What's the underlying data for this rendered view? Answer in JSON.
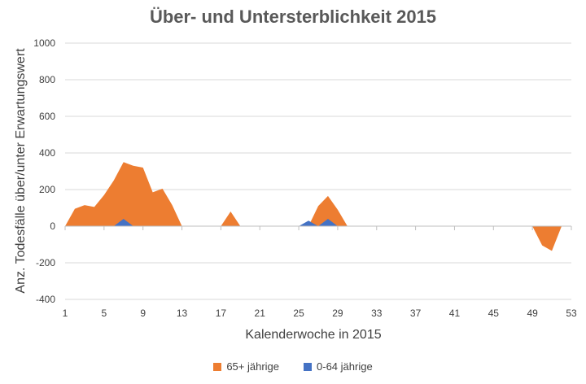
{
  "chart_data": {
    "type": "area",
    "title": "Über- und Untersterblichkeit 2015",
    "xlabel": "Kalenderwoche in 2015",
    "ylabel": "Anz. Todesfälle über/unter Erwartungswert",
    "xlim": [
      1,
      53
    ],
    "ylim": [
      -400,
      1000
    ],
    "x_ticks": [
      1,
      5,
      9,
      13,
      17,
      21,
      25,
      29,
      33,
      37,
      41,
      45,
      49,
      53
    ],
    "y_ticks": [
      -400,
      -200,
      0,
      200,
      400,
      600,
      800,
      1000
    ],
    "grid": true,
    "legend_position": "bottom",
    "series": [
      {
        "name": "65+ jährige",
        "color": "#ED7D31",
        "x": [
          1,
          2,
          3,
          4,
          5,
          6,
          7,
          8,
          9,
          10,
          11,
          12,
          13,
          14,
          15,
          16,
          17,
          18,
          19,
          20,
          21,
          22,
          23,
          24,
          25,
          26,
          27,
          28,
          29,
          30,
          31,
          32,
          33,
          34,
          35,
          36,
          37,
          38,
          39,
          40,
          41,
          42,
          43,
          44,
          45,
          46,
          47,
          48,
          49,
          50,
          51,
          52
        ],
        "values": [
          0,
          95,
          115,
          105,
          170,
          250,
          350,
          330,
          320,
          185,
          205,
          115,
          0,
          0,
          0,
          0,
          0,
          80,
          0,
          0,
          0,
          0,
          0,
          0,
          0,
          0,
          110,
          165,
          90,
          0,
          0,
          0,
          0,
          0,
          0,
          0,
          0,
          0,
          0,
          0,
          0,
          0,
          0,
          0,
          0,
          0,
          0,
          0,
          0,
          -105,
          -135,
          0
        ]
      },
      {
        "name": "0-64 jährige",
        "color": "#4472C4",
        "x": [
          1,
          2,
          3,
          4,
          5,
          6,
          7,
          8,
          9,
          10,
          11,
          12,
          13,
          14,
          15,
          16,
          17,
          18,
          19,
          20,
          21,
          22,
          23,
          24,
          25,
          26,
          27,
          28,
          29,
          30,
          31,
          32,
          33,
          34,
          35,
          36,
          37,
          38,
          39,
          40,
          41,
          42,
          43,
          44,
          45,
          46,
          47,
          48,
          49,
          50,
          51,
          52
        ],
        "values": [
          0,
          0,
          0,
          0,
          0,
          0,
          40,
          0,
          0,
          0,
          0,
          0,
          0,
          0,
          0,
          0,
          0,
          0,
          0,
          0,
          0,
          0,
          0,
          0,
          0,
          30,
          0,
          40,
          0,
          0,
          0,
          0,
          0,
          0,
          0,
          0,
          0,
          0,
          0,
          0,
          0,
          0,
          0,
          0,
          0,
          0,
          0,
          0,
          0,
          0,
          0,
          0
        ]
      }
    ]
  }
}
